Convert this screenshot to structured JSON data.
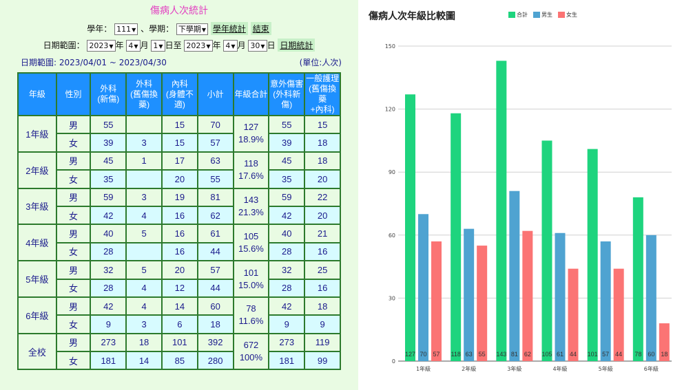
{
  "form": {
    "title": "傷病人次統計",
    "year_label": "學年：",
    "year_value": "111",
    "term_sep": "、學期：",
    "term_value": "下學期",
    "btn_year_stats": "學年統計",
    "btn_end": "結束",
    "date_range_label": "日期範圍：",
    "start_year": "2023",
    "start_month": "4",
    "start_day": "1",
    "end_year": "2023",
    "end_month": "4",
    "end_day": "30",
    "unit_year": "年",
    "unit_month": "月",
    "unit_day_to": "日至",
    "unit_day": "日",
    "btn_date_stats": "日期統計",
    "date_range_text": "日期範圍: 2023/04/01 ~ 2023/04/30",
    "unit_text": "(單位:人次)"
  },
  "table": {
    "headers": [
      "年級",
      "性別",
      "外科\n(新傷)",
      "外科\n(舊傷換藥)",
      "內科\n(身體不適)",
      "小計",
      "年級合計",
      "意外傷害\n(外科新傷)",
      "一般護理\n(舊傷換藥\n+內科)"
    ],
    "groups": [
      {
        "grade": "1年級",
        "total": "127",
        "pct": "18.9%",
        "rows": [
          {
            "sex": "男",
            "cells": [
              "55",
              "",
              "15",
              "70",
              "55",
              "15"
            ]
          },
          {
            "sex": "女",
            "cells": [
              "39",
              "3",
              "15",
              "57",
              "39",
              "18"
            ]
          }
        ]
      },
      {
        "grade": "2年級",
        "total": "118",
        "pct": "17.6%",
        "rows": [
          {
            "sex": "男",
            "cells": [
              "45",
              "1",
              "17",
              "63",
              "45",
              "18"
            ]
          },
          {
            "sex": "女",
            "cells": [
              "35",
              "",
              "20",
              "55",
              "35",
              "20"
            ]
          }
        ]
      },
      {
        "grade": "3年級",
        "total": "143",
        "pct": "21.3%",
        "rows": [
          {
            "sex": "男",
            "cells": [
              "59",
              "3",
              "19",
              "81",
              "59",
              "22"
            ]
          },
          {
            "sex": "女",
            "cells": [
              "42",
              "4",
              "16",
              "62",
              "42",
              "20"
            ]
          }
        ]
      },
      {
        "grade": "4年級",
        "total": "105",
        "pct": "15.6%",
        "rows": [
          {
            "sex": "男",
            "cells": [
              "40",
              "5",
              "16",
              "61",
              "40",
              "21"
            ]
          },
          {
            "sex": "女",
            "cells": [
              "28",
              "",
              "16",
              "44",
              "28",
              "16"
            ]
          }
        ]
      },
      {
        "grade": "5年級",
        "total": "101",
        "pct": "15.0%",
        "rows": [
          {
            "sex": "男",
            "cells": [
              "32",
              "5",
              "20",
              "57",
              "32",
              "25"
            ]
          },
          {
            "sex": "女",
            "cells": [
              "28",
              "4",
              "12",
              "44",
              "28",
              "16"
            ]
          }
        ]
      },
      {
        "grade": "6年級",
        "total": "78",
        "pct": "11.6%",
        "rows": [
          {
            "sex": "男",
            "cells": [
              "42",
              "4",
              "14",
              "60",
              "42",
              "18"
            ]
          },
          {
            "sex": "女",
            "cells": [
              "9",
              "3",
              "6",
              "18",
              "9",
              "9"
            ]
          }
        ]
      },
      {
        "grade": "全校",
        "total": "672",
        "pct": "100%",
        "rows": [
          {
            "sex": "男",
            "cells": [
              "273",
              "18",
              "101",
              "392",
              "273",
              "119"
            ]
          },
          {
            "sex": "女",
            "cells": [
              "181",
              "14",
              "85",
              "280",
              "181",
              "99"
            ]
          }
        ]
      }
    ]
  },
  "chart_data": {
    "type": "bar",
    "title": "傷病人次年級比較圖",
    "categories": [
      "1年級",
      "2年級",
      "3年級",
      "4年級",
      "5年級",
      "6年級"
    ],
    "series": [
      {
        "name": "合計",
        "color": "#1ed47e",
        "values": [
          127,
          118,
          143,
          105,
          101,
          78
        ]
      },
      {
        "name": "男生",
        "color": "#4fa3d1",
        "values": [
          70,
          63,
          81,
          61,
          57,
          60
        ]
      },
      {
        "name": "女生",
        "color": "#fb7474",
        "values": [
          57,
          55,
          62,
          44,
          44,
          18
        ]
      }
    ],
    "ylim": [
      0,
      150
    ],
    "yticks": [
      0,
      30,
      60,
      90,
      120,
      150
    ],
    "grid": true,
    "legend": "top-center"
  }
}
